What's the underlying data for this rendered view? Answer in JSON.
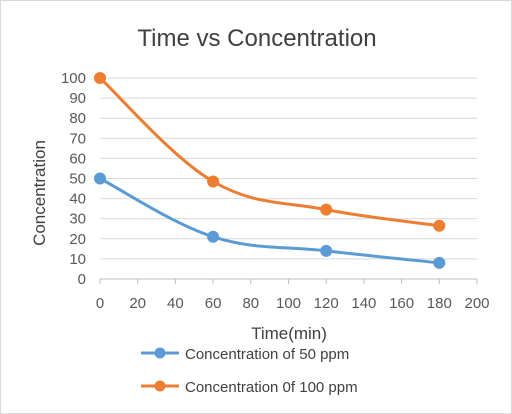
{
  "chart_data": {
    "type": "scatter",
    "title": "Time vs Concentration",
    "xlabel": "Time(min)",
    "ylabel": "Concentration",
    "xlim": [
      0,
      200
    ],
    "ylim": [
      0,
      100
    ],
    "x_ticks": [
      0,
      20,
      40,
      60,
      80,
      100,
      120,
      140,
      160,
      180,
      200
    ],
    "y_ticks": [
      0,
      10,
      20,
      30,
      40,
      50,
      60,
      70,
      80,
      90,
      100
    ],
    "grid": "horizontal major",
    "smooth_lines": true,
    "legend_position": "bottom",
    "series": [
      {
        "name": "Concentration of 50 ppm",
        "color": "#5b9bd5",
        "x": [
          0,
          60,
          120,
          180
        ],
        "y": [
          50,
          21,
          14,
          8
        ]
      },
      {
        "name": "Concentration 0f 100 ppm",
        "color": "#ed7d31",
        "x": [
          0,
          60,
          120,
          180
        ],
        "y": [
          100,
          48.5,
          34.5,
          26.5
        ]
      }
    ]
  }
}
